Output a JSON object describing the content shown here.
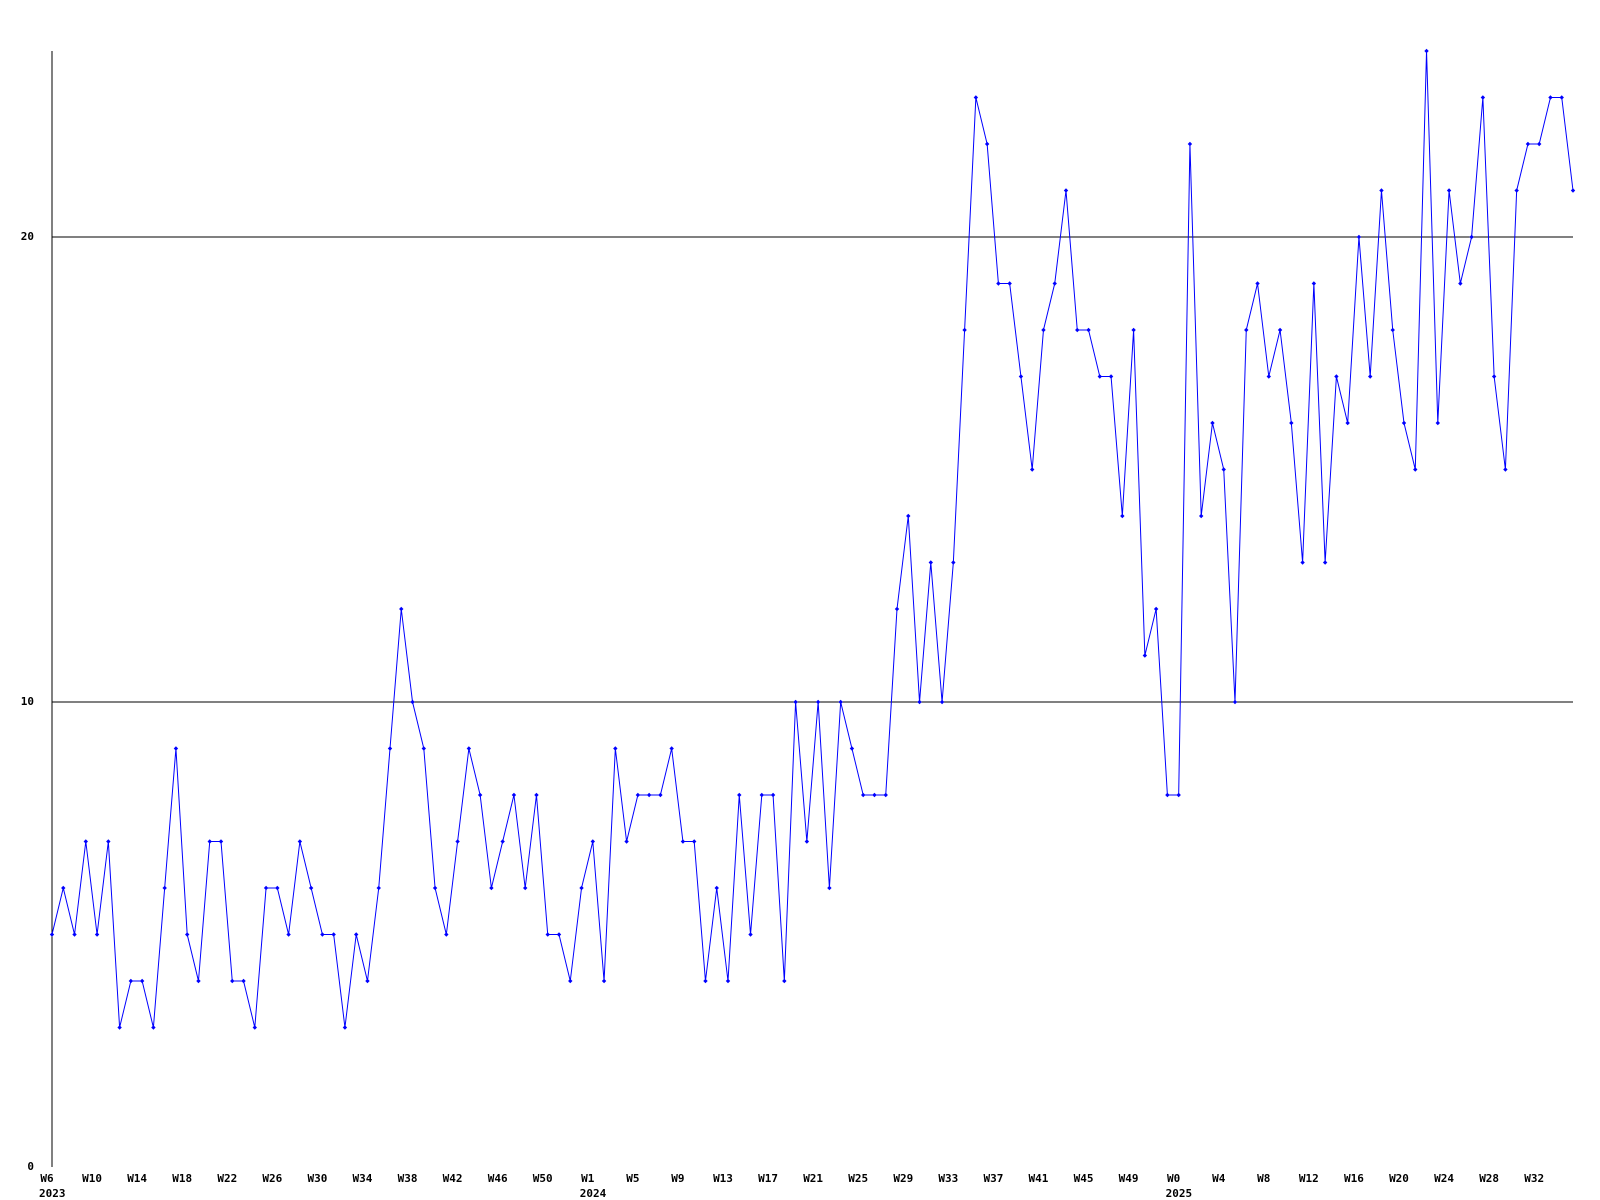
{
  "chart_data": {
    "type": "line",
    "color": "#0000ff",
    "grid": true,
    "ylim": [
      0,
      24
    ],
    "yticks": [
      0,
      10,
      20
    ],
    "categories": [
      "W6",
      null,
      null,
      null,
      "W10",
      null,
      null,
      null,
      "W14",
      null,
      null,
      null,
      "W18",
      null,
      null,
      null,
      "W22",
      null,
      null,
      null,
      "W26",
      null,
      null,
      null,
      "W30",
      null,
      null,
      null,
      "W34",
      null,
      null,
      null,
      "W38",
      null,
      null,
      null,
      "W42",
      null,
      null,
      null,
      "W46",
      null,
      null,
      null,
      "W50",
      null,
      null,
      null,
      "W1",
      null,
      null,
      null,
      "W5",
      null,
      null,
      null,
      "W9",
      null,
      null,
      null,
      "W13",
      null,
      null,
      null,
      "W17",
      null,
      null,
      null,
      "W21",
      null,
      null,
      null,
      "W25",
      null,
      null,
      null,
      "W29",
      null,
      null,
      null,
      "W33",
      null,
      null,
      null,
      "W37",
      null,
      null,
      null,
      "W41",
      null,
      null,
      null,
      "W45",
      null,
      null,
      null,
      "W49",
      null,
      null,
      null,
      "W0",
      null,
      null,
      null,
      "W4",
      null,
      null,
      null,
      "W8",
      null,
      null,
      null,
      "W12",
      null,
      null,
      null,
      "W16",
      null,
      null,
      null,
      "W20",
      null,
      null,
      null,
      "W24",
      null,
      null,
      null,
      "W28",
      null,
      null,
      null,
      "W32",
      null,
      null,
      null
    ],
    "category_years": [
      "2023",
      null,
      null,
      null,
      null,
      null,
      null,
      null,
      null,
      null,
      null,
      null,
      null,
      null,
      null,
      null,
      null,
      null,
      null,
      null,
      null,
      null,
      null,
      null,
      null,
      null,
      null,
      null,
      null,
      null,
      null,
      null,
      null,
      null,
      null,
      null,
      null,
      null,
      null,
      null,
      null,
      null,
      null,
      null,
      null,
      null,
      null,
      null,
      "2024",
      null,
      null,
      null,
      null,
      null,
      null,
      null,
      null,
      null,
      null,
      null,
      null,
      null,
      null,
      null,
      null,
      null,
      null,
      null,
      null,
      null,
      null,
      null,
      null,
      null,
      null,
      null,
      null,
      null,
      null,
      null,
      null,
      null,
      null,
      null,
      null,
      null,
      null,
      null,
      null,
      null,
      null,
      null,
      null,
      null,
      null,
      null,
      null,
      null,
      null,
      null,
      "2025",
      null,
      null,
      null,
      null,
      null,
      null,
      null,
      null,
      null,
      null,
      null,
      null,
      null,
      null,
      null,
      null,
      null,
      null,
      null,
      null,
      null,
      null,
      null,
      null,
      null,
      null,
      null,
      null,
      null,
      null,
      null,
      null,
      null,
      null,
      null
    ],
    "values": [
      5,
      6,
      5,
      7,
      5,
      7,
      3,
      4,
      4,
      3,
      6,
      9,
      5,
      4,
      7,
      7,
      4,
      4,
      3,
      6,
      6,
      5,
      7,
      6,
      5,
      5,
      3,
      5,
      4,
      6,
      9,
      12,
      10,
      9,
      6,
      5,
      7,
      9,
      8,
      6,
      7,
      8,
      6,
      8,
      5,
      5,
      4,
      6,
      7,
      4,
      9,
      7,
      8,
      8,
      8,
      9,
      7,
      7,
      4,
      6,
      4,
      8,
      5,
      8,
      8,
      4,
      10,
      7,
      10,
      6,
      10,
      9,
      8,
      8,
      8,
      12,
      14,
      10,
      13,
      10,
      13,
      18,
      23,
      22,
      19,
      19,
      17,
      15,
      18,
      19,
      21,
      18,
      18,
      17,
      17,
      14,
      18,
      11,
      12,
      8,
      8,
      22,
      14,
      16,
      15,
      10,
      18,
      19,
      17,
      18,
      16,
      13,
      19,
      13,
      17,
      16,
      20,
      17,
      21,
      18,
      16,
      15,
      24,
      16,
      21,
      19,
      20,
      23,
      17,
      15,
      21,
      22,
      22,
      23,
      23,
      21
    ]
  }
}
